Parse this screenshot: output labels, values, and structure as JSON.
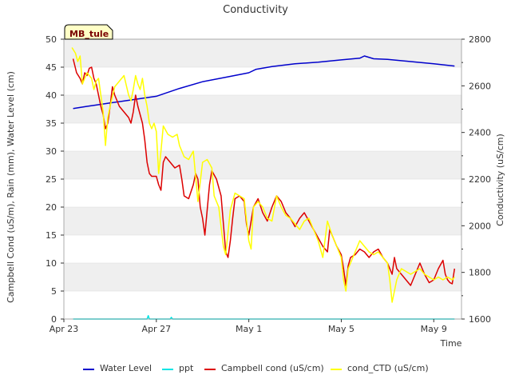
{
  "chart_data": {
    "type": "line",
    "title": "Conductivity",
    "xlabel": "Time",
    "ylabel_left": "Campbell Cond (uS/m), Rain (mm), Water Level (cm)",
    "ylabel_right": "Conductivity (uS/cm)",
    "site_label": "MB_tule",
    "x_ticks": [
      {
        "day": 0,
        "label": "Apr 23"
      },
      {
        "day": 4,
        "label": "Apr 27"
      },
      {
        "day": 8,
        "label": "May 1"
      },
      {
        "day": 12,
        "label": "May 5"
      },
      {
        "day": 16,
        "label": "May 9"
      }
    ],
    "xlim": [
      0,
      17.2
    ],
    "ylim_left": [
      0,
      50
    ],
    "ylim_right": [
      1600,
      2800
    ],
    "y_ticks_left": [
      "0",
      "5",
      "10",
      "15",
      "20",
      "25",
      "30",
      "35",
      "40",
      "45",
      "50"
    ],
    "y_ticks_right": [
      "1600",
      "1800",
      "2000",
      "2200",
      "2400",
      "2600",
      "2800"
    ],
    "grid_bands": true,
    "legend_position": "bottom",
    "series": [
      {
        "name": "Water Level",
        "color": "#0000cc",
        "axis": "left",
        "points": [
          [
            0.4,
            37.6
          ],
          [
            1,
            38
          ],
          [
            2,
            38.6
          ],
          [
            3,
            39.2
          ],
          [
            4,
            39.8
          ],
          [
            5,
            41.2
          ],
          [
            6,
            42.4
          ],
          [
            7,
            43.2
          ],
          [
            8,
            44
          ],
          [
            8.3,
            44.6
          ],
          [
            9,
            45.1
          ],
          [
            10,
            45.6
          ],
          [
            11,
            45.9
          ],
          [
            12,
            46.3
          ],
          [
            12.8,
            46.6
          ],
          [
            13,
            47
          ],
          [
            13.4,
            46.5
          ],
          [
            14,
            46.4
          ],
          [
            15,
            46
          ],
          [
            16,
            45.6
          ],
          [
            16.9,
            45.2
          ]
        ]
      },
      {
        "name": "ppt",
        "color": "#00e5e5",
        "axis": "left",
        "points": [
          [
            0.4,
            0
          ],
          [
            3.6,
            0
          ],
          [
            3.65,
            0.6
          ],
          [
            3.7,
            0
          ],
          [
            4.6,
            0
          ],
          [
            4.65,
            0.3
          ],
          [
            4.7,
            0
          ],
          [
            16.9,
            0
          ]
        ]
      },
      {
        "name": "Campbell cond (uS/cm)",
        "color": "#dd0000",
        "axis": "left",
        "points": [
          [
            0.4,
            46.5
          ],
          [
            0.55,
            44
          ],
          [
            0.7,
            43
          ],
          [
            0.8,
            42
          ],
          [
            0.9,
            44
          ],
          [
            1,
            43.5
          ],
          [
            1.1,
            44.8
          ],
          [
            1.2,
            45
          ],
          [
            1.3,
            43
          ],
          [
            1.4,
            42
          ],
          [
            1.5,
            40
          ],
          [
            1.6,
            38
          ],
          [
            1.7,
            36.5
          ],
          [
            1.8,
            34
          ],
          [
            1.9,
            35
          ],
          [
            2,
            38
          ],
          [
            2.1,
            41.5
          ],
          [
            2.2,
            40
          ],
          [
            2.4,
            38
          ],
          [
            2.6,
            37
          ],
          [
            2.8,
            36
          ],
          [
            2.9,
            35
          ],
          [
            3,
            37
          ],
          [
            3.1,
            40
          ],
          [
            3.2,
            38
          ],
          [
            3.4,
            35
          ],
          [
            3.5,
            32
          ],
          [
            3.6,
            28
          ],
          [
            3.7,
            26
          ],
          [
            3.8,
            25.5
          ],
          [
            4,
            25.5
          ],
          [
            4.1,
            24
          ],
          [
            4.2,
            23
          ],
          [
            4.3,
            28
          ],
          [
            4.4,
            29
          ],
          [
            4.6,
            28
          ],
          [
            4.8,
            27
          ],
          [
            5,
            27.5
          ],
          [
            5.1,
            25
          ],
          [
            5.2,
            22
          ],
          [
            5.4,
            21.5
          ],
          [
            5.6,
            24
          ],
          [
            5.7,
            26
          ],
          [
            5.8,
            25
          ],
          [
            5.9,
            20
          ],
          [
            6,
            18
          ],
          [
            6.1,
            15
          ],
          [
            6.2,
            19.5
          ],
          [
            6.3,
            24
          ],
          [
            6.4,
            26.5
          ],
          [
            6.6,
            25
          ],
          [
            6.8,
            22
          ],
          [
            6.9,
            17
          ],
          [
            7,
            12
          ],
          [
            7.1,
            11
          ],
          [
            7.2,
            14
          ],
          [
            7.3,
            18
          ],
          [
            7.4,
            21.5
          ],
          [
            7.6,
            22
          ],
          [
            7.8,
            21
          ],
          [
            7.9,
            17
          ],
          [
            8,
            15
          ],
          [
            8.1,
            17.5
          ],
          [
            8.2,
            20
          ],
          [
            8.4,
            21.5
          ],
          [
            8.6,
            19
          ],
          [
            8.8,
            17.5
          ],
          [
            9,
            20
          ],
          [
            9.2,
            22
          ],
          [
            9.4,
            21
          ],
          [
            9.6,
            19
          ],
          [
            9.8,
            18
          ],
          [
            10,
            16.5
          ],
          [
            10.2,
            18
          ],
          [
            10.4,
            19
          ],
          [
            10.6,
            17.5
          ],
          [
            10.8,
            16
          ],
          [
            11,
            14.5
          ],
          [
            11.2,
            13
          ],
          [
            11.4,
            12
          ],
          [
            11.5,
            16
          ],
          [
            11.6,
            15
          ],
          [
            11.8,
            13
          ],
          [
            12,
            11.5
          ],
          [
            12.1,
            9
          ],
          [
            12.2,
            6
          ],
          [
            12.3,
            9.5
          ],
          [
            12.4,
            11
          ],
          [
            12.6,
            11.5
          ],
          [
            12.8,
            12.5
          ],
          [
            13,
            12
          ],
          [
            13.2,
            11
          ],
          [
            13.4,
            12
          ],
          [
            13.6,
            12.5
          ],
          [
            13.8,
            11
          ],
          [
            14,
            10
          ],
          [
            14.2,
            8
          ],
          [
            14.3,
            11
          ],
          [
            14.4,
            9
          ],
          [
            14.6,
            8
          ],
          [
            14.8,
            7
          ],
          [
            15,
            6
          ],
          [
            15.2,
            8
          ],
          [
            15.4,
            10
          ],
          [
            15.6,
            8
          ],
          [
            15.8,
            6.5
          ],
          [
            16,
            7
          ],
          [
            16.2,
            9
          ],
          [
            16.4,
            10.5
          ],
          [
            16.5,
            8
          ],
          [
            16.6,
            7
          ],
          [
            16.7,
            6.5
          ],
          [
            16.8,
            6.3
          ],
          [
            16.9,
            9
          ]
        ]
      },
      {
        "name": "cond_CTD (uS/cm)",
        "color": "#ffff00",
        "axis": "left",
        "points": [
          [
            0.35,
            48.5
          ],
          [
            0.5,
            47.5
          ],
          [
            0.6,
            46
          ],
          [
            0.7,
            47
          ],
          [
            0.8,
            42
          ],
          [
            0.9,
            43
          ],
          [
            1,
            44
          ],
          [
            1.1,
            43.5
          ],
          [
            1.2,
            43
          ],
          [
            1.3,
            41
          ],
          [
            1.4,
            42.5
          ],
          [
            1.5,
            43
          ],
          [
            1.6,
            40
          ],
          [
            1.7,
            37
          ],
          [
            1.8,
            31
          ],
          [
            1.9,
            36
          ],
          [
            2,
            38
          ],
          [
            2.2,
            41.5
          ],
          [
            2.4,
            42.5
          ],
          [
            2.6,
            43.5
          ],
          [
            2.8,
            40
          ],
          [
            2.9,
            39
          ],
          [
            3,
            41
          ],
          [
            3.1,
            43.5
          ],
          [
            3.2,
            42
          ],
          [
            3.3,
            41
          ],
          [
            3.4,
            43
          ],
          [
            3.5,
            40
          ],
          [
            3.6,
            38
          ],
          [
            3.7,
            35
          ],
          [
            3.8,
            34
          ],
          [
            3.9,
            35
          ],
          [
            4,
            33.5
          ],
          [
            4.1,
            26
          ],
          [
            4.2,
            30
          ],
          [
            4.3,
            34.5
          ],
          [
            4.5,
            33
          ],
          [
            4.7,
            32.5
          ],
          [
            4.9,
            33
          ],
          [
            5,
            31
          ],
          [
            5.2,
            29
          ],
          [
            5.4,
            28.5
          ],
          [
            5.6,
            30
          ],
          [
            5.8,
            21
          ],
          [
            6,
            28
          ],
          [
            6.2,
            28.5
          ],
          [
            6.4,
            27
          ],
          [
            6.5,
            22
          ],
          [
            6.7,
            20
          ],
          [
            6.9,
            13
          ],
          [
            7,
            11.5
          ],
          [
            7.2,
            19.5
          ],
          [
            7.4,
            22.5
          ],
          [
            7.6,
            22
          ],
          [
            7.8,
            21.5
          ],
          [
            8,
            14
          ],
          [
            8.1,
            12.5
          ],
          [
            8.2,
            20
          ],
          [
            8.4,
            21
          ],
          [
            8.6,
            20
          ],
          [
            8.8,
            18
          ],
          [
            9,
            17.5
          ],
          [
            9.2,
            22
          ],
          [
            9.4,
            20
          ],
          [
            9.6,
            18.5
          ],
          [
            9.8,
            18
          ],
          [
            10,
            17
          ],
          [
            10.2,
            16
          ],
          [
            10.4,
            17.5
          ],
          [
            10.6,
            18
          ],
          [
            10.8,
            16
          ],
          [
            11,
            14
          ],
          [
            11.2,
            11
          ],
          [
            11.4,
            17.5
          ],
          [
            11.6,
            15
          ],
          [
            11.8,
            13
          ],
          [
            12,
            11
          ],
          [
            12.1,
            7
          ],
          [
            12.2,
            5
          ],
          [
            12.3,
            9
          ],
          [
            12.5,
            11
          ],
          [
            12.8,
            14
          ],
          [
            13,
            13
          ],
          [
            13.2,
            12
          ],
          [
            13.4,
            11.5
          ],
          [
            13.6,
            12
          ],
          [
            13.8,
            11
          ],
          [
            14,
            10
          ],
          [
            14.1,
            7
          ],
          [
            14.2,
            3
          ],
          [
            14.3,
            5
          ],
          [
            14.4,
            7
          ],
          [
            14.6,
            9
          ],
          [
            14.8,
            8.5
          ],
          [
            15,
            8
          ],
          [
            15.2,
            8.5
          ],
          [
            15.4,
            9
          ],
          [
            15.6,
            8
          ],
          [
            15.8,
            7.5
          ],
          [
            16,
            7
          ],
          [
            16.2,
            7.5
          ],
          [
            16.4,
            7
          ],
          [
            16.6,
            7.5
          ],
          [
            16.8,
            7
          ],
          [
            16.9,
            7.5
          ]
        ]
      }
    ]
  }
}
